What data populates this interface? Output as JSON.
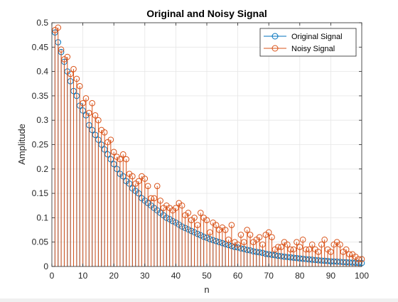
{
  "chart_data": {
    "type": "stem",
    "title": "Original and Noisy Signal",
    "xlabel": "n",
    "ylabel": "Amplitude",
    "xlim": [
      0,
      100
    ],
    "ylim": [
      0,
      0.5
    ],
    "xticks": [
      0,
      10,
      20,
      30,
      40,
      50,
      60,
      70,
      80,
      90,
      100
    ],
    "yticks": [
      0,
      0.05,
      0.1,
      0.15,
      0.2,
      0.25,
      0.3,
      0.35,
      0.4,
      0.45,
      0.5
    ],
    "xtick_labels": [
      "0",
      "10",
      "20",
      "30",
      "40",
      "50",
      "60",
      "70",
      "80",
      "90",
      "100"
    ],
    "ytick_labels": [
      "0",
      "0.05",
      "0.1",
      "0.15",
      "0.2",
      "0.25",
      "0.3",
      "0.35",
      "0.4",
      "0.45",
      "0.5"
    ],
    "grid": true,
    "legend_position": "top-right",
    "x": [
      1,
      2,
      3,
      4,
      5,
      6,
      7,
      8,
      9,
      10,
      11,
      12,
      13,
      14,
      15,
      16,
      17,
      18,
      19,
      20,
      21,
      22,
      23,
      24,
      25,
      26,
      27,
      28,
      29,
      30,
      31,
      32,
      33,
      34,
      35,
      36,
      37,
      38,
      39,
      40,
      41,
      42,
      43,
      44,
      45,
      46,
      47,
      48,
      49,
      50,
      51,
      52,
      53,
      54,
      55,
      56,
      57,
      58,
      59,
      60,
      61,
      62,
      63,
      64,
      65,
      66,
      67,
      68,
      69,
      70,
      71,
      72,
      73,
      74,
      75,
      76,
      77,
      78,
      79,
      80,
      81,
      82,
      83,
      84,
      85,
      86,
      87,
      88,
      89,
      90,
      91,
      92,
      93,
      94,
      95,
      96,
      97,
      98,
      99,
      100
    ],
    "series": [
      {
        "name": "Original Signal",
        "color": "#0072bd",
        "values": [
          0.48,
          0.46,
          0.44,
          0.42,
          0.4,
          0.38,
          0.36,
          0.35,
          0.33,
          0.32,
          0.31,
          0.29,
          0.28,
          0.27,
          0.26,
          0.25,
          0.24,
          0.23,
          0.22,
          0.21,
          0.2,
          0.19,
          0.185,
          0.175,
          0.17,
          0.16,
          0.155,
          0.15,
          0.14,
          0.135,
          0.13,
          0.125,
          0.12,
          0.115,
          0.11,
          0.105,
          0.1,
          0.097,
          0.093,
          0.09,
          0.086,
          0.082,
          0.079,
          0.076,
          0.073,
          0.07,
          0.067,
          0.064,
          0.061,
          0.059,
          0.056,
          0.054,
          0.052,
          0.05,
          0.048,
          0.046,
          0.044,
          0.042,
          0.04,
          0.039,
          0.037,
          0.036,
          0.034,
          0.033,
          0.031,
          0.03,
          0.029,
          0.028,
          0.026,
          0.025,
          0.024,
          0.023,
          0.022,
          0.021,
          0.02,
          0.0195,
          0.0187,
          0.018,
          0.0172,
          0.0165,
          0.0158,
          0.0151,
          0.0145,
          0.0139,
          0.0133,
          0.0127,
          0.0122,
          0.0117,
          0.0112,
          0.0107,
          0.0103,
          0.0099,
          0.0095,
          0.0091,
          0.0087,
          0.0083,
          0.008,
          0.0077,
          0.0074,
          0.0071
        ]
      },
      {
        "name": "Noisy Signal",
        "color": "#d95319",
        "values": [
          0.485,
          0.49,
          0.445,
          0.425,
          0.43,
          0.395,
          0.405,
          0.385,
          0.37,
          0.335,
          0.345,
          0.315,
          0.335,
          0.31,
          0.3,
          0.28,
          0.275,
          0.255,
          0.26,
          0.235,
          0.225,
          0.22,
          0.23,
          0.22,
          0.19,
          0.185,
          0.17,
          0.175,
          0.185,
          0.18,
          0.165,
          0.14,
          0.14,
          0.165,
          0.135,
          0.12,
          0.125,
          0.12,
          0.115,
          0.12,
          0.13,
          0.125,
          0.105,
          0.11,
          0.095,
          0.1,
          0.085,
          0.11,
          0.1,
          0.095,
          0.07,
          0.09,
          0.085,
          0.075,
          0.08,
          0.075,
          0.055,
          0.085,
          0.05,
          0.045,
          0.065,
          0.05,
          0.075,
          0.065,
          0.05,
          0.055,
          0.06,
          0.045,
          0.065,
          0.07,
          0.06,
          0.035,
          0.04,
          0.04,
          0.05,
          0.045,
          0.035,
          0.035,
          0.05,
          0.04,
          0.055,
          0.035,
          0.035,
          0.045,
          0.035,
          0.03,
          0.045,
          0.055,
          0.035,
          0.03,
          0.045,
          0.05,
          0.045,
          0.03,
          0.035,
          0.025,
          0.025,
          0.02,
          0.015,
          0.015
        ]
      }
    ]
  }
}
